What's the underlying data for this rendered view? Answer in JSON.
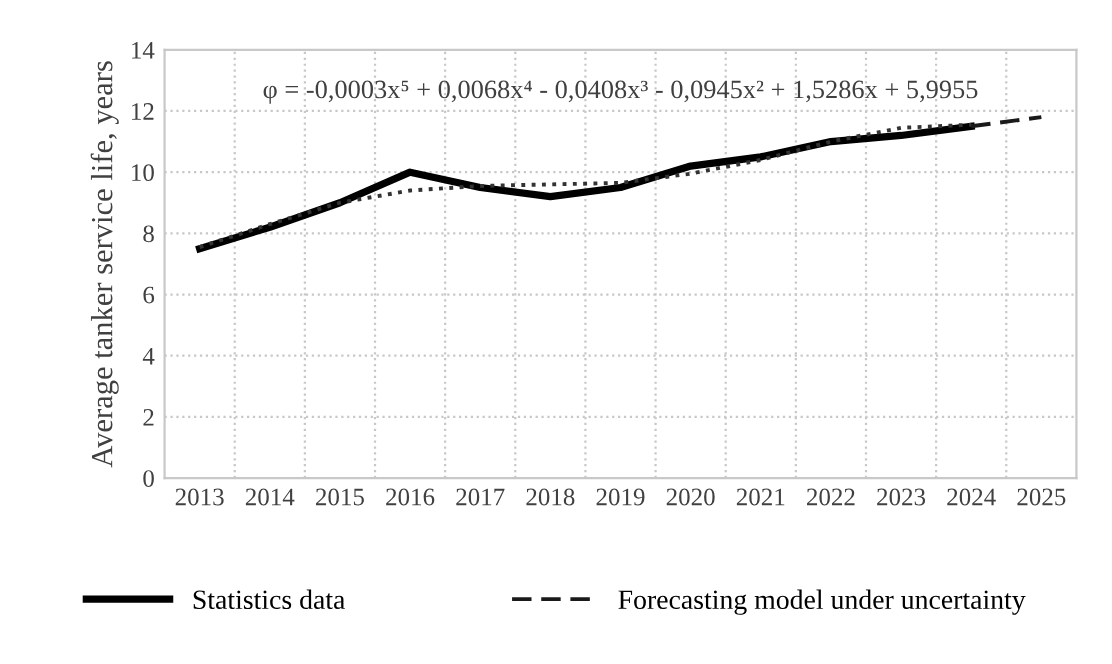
{
  "chart_data": {
    "type": "line",
    "ylabel": "Average tanker service life, years",
    "categories": [
      "2013",
      "2014",
      "2015",
      "2016",
      "2017",
      "2018",
      "2019",
      "2020",
      "2021",
      "2022",
      "2023",
      "2024",
      "2025"
    ],
    "series": [
      {
        "name": "Statistics data",
        "color": "#000000",
        "line_style": "solid",
        "values": [
          7.5,
          8.2,
          9.0,
          10.0,
          9.5,
          9.2,
          9.5,
          10.2,
          10.5,
          11.0,
          11.2,
          11.5,
          null
        ]
      },
      {
        "name": "Forecasting model under uncertainty",
        "color": "#1a1a1a",
        "line_style": "dashed",
        "values": [
          null,
          null,
          null,
          null,
          null,
          null,
          null,
          null,
          null,
          null,
          null,
          11.5,
          11.8
        ]
      },
      {
        "color": "#333333",
        "line_style": "dotted",
        "values": [
          7.55,
          8.3,
          9.0,
          9.4,
          9.55,
          9.6,
          9.65,
          9.95,
          10.4,
          11.0,
          11.45,
          11.55,
          null
        ]
      }
    ],
    "annotations": [
      "φ = -0,0003x⁵ + 0,0068x⁴ - 0,0408x³ - 0,0945x² + 1,5286x + 5,9955"
    ],
    "ylim": [
      0,
      14
    ],
    "yticks": [
      0,
      2,
      4,
      6,
      8,
      10,
      12,
      14
    ],
    "grid": true,
    "legend": "bottom",
    "marker": "none"
  }
}
